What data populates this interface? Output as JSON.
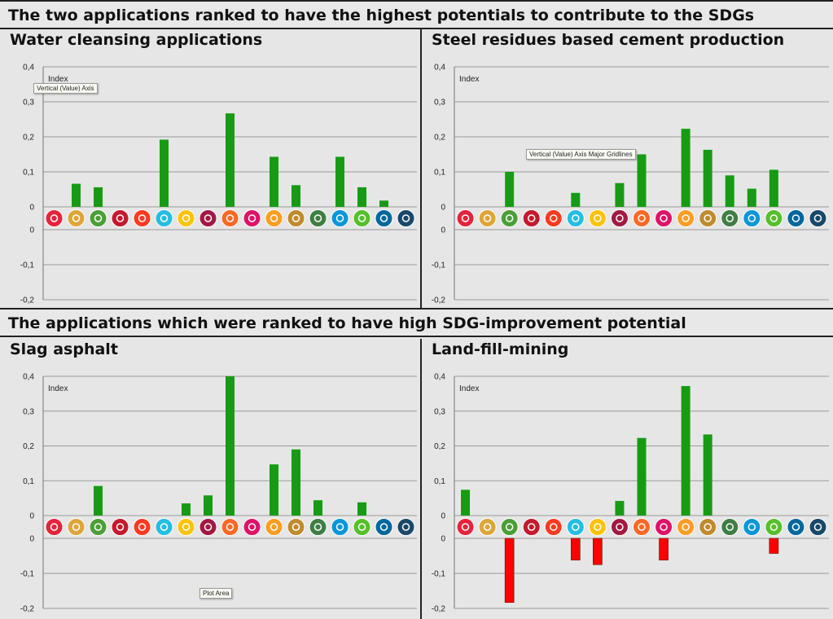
{
  "section_titles": {
    "top": "The two applications ranked to have the highest potentials to contribute to the SDGs",
    "bottom": "The applications which were ranked to have high SDG-improvement potential"
  },
  "tooltips": {
    "vertical_axis": "Vertical (Value) Axis",
    "major_gridlines": "Vertical (Value) Axis Major Gridlines",
    "plot_area": "Plot Area"
  },
  "sdg_icon_colors": [
    "#e5243b",
    "#dda63a",
    "#4c9f38",
    "#c5192d",
    "#ff3a21",
    "#26bde2",
    "#fcc30b",
    "#a21942",
    "#fd6925",
    "#dd1367",
    "#fd9d24",
    "#bf8b2e",
    "#3f7e44",
    "#0a97d9",
    "#56c02b",
    "#00689d",
    "#19486a"
  ],
  "sdg_icon_names": [
    "no-poverty-icon",
    "zero-hunger-icon",
    "good-health-icon",
    "quality-education-icon",
    "gender-equality-icon",
    "clean-water-icon",
    "clean-energy-icon",
    "decent-work-icon",
    "industry-innovation-icon",
    "reduced-inequality-icon",
    "sustainable-cities-icon",
    "responsible-consumption-icon",
    "climate-action-icon",
    "life-below-water-icon",
    "life-on-land-icon",
    "peace-justice-icon",
    "partnerships-icon"
  ],
  "chart_data": [
    {
      "type": "bar",
      "title": "Water cleansing applications",
      "ylabel": "Index",
      "ylim": [
        -0.2,
        0.4
      ],
      "yticks": [
        "0,4",
        "0,3",
        "0,2",
        "0,1",
        "0",
        "0",
        "-0,1",
        "-0,2"
      ],
      "categories": [
        "SDG1",
        "SDG2",
        "SDG3",
        "SDG4",
        "SDG5",
        "SDG6",
        "SDG7",
        "SDG8",
        "SDG9",
        "SDG10",
        "SDG11",
        "SDG12",
        "SDG13",
        "SDG14",
        "SDG15",
        "SDG16",
        "SDG17"
      ],
      "values": [
        0,
        0.066,
        0.056,
        0,
        0,
        0.192,
        0,
        0,
        0.267,
        0,
        0.143,
        0.062,
        0,
        0.143,
        0.056,
        0.018,
        0
      ],
      "positive_color": "#189b14",
      "negative_color": "#ff0000",
      "grid": true
    },
    {
      "type": "bar",
      "title": "Steel residues based cement production",
      "ylabel": "Index",
      "ylim": [
        -0.2,
        0.4
      ],
      "yticks": [
        "0,4",
        "0,3",
        "0,2",
        "0,1",
        "0",
        "0",
        "-0,1",
        "-0,2"
      ],
      "categories": [
        "SDG1",
        "SDG2",
        "SDG3",
        "SDG4",
        "SDG5",
        "SDG6",
        "SDG7",
        "SDG8",
        "SDG9",
        "SDG10",
        "SDG11",
        "SDG12",
        "SDG13",
        "SDG14",
        "SDG15",
        "SDG16",
        "SDG17"
      ],
      "values": [
        0,
        0,
        0.1,
        0,
        0,
        0.04,
        0,
        0.068,
        0.15,
        0,
        0.223,
        0.163,
        0.09,
        0.052,
        0.106,
        0,
        0
      ],
      "positive_color": "#189b14",
      "negative_color": "#ff0000",
      "grid": true
    },
    {
      "type": "bar",
      "title": "Slag asphalt",
      "ylabel": "Index",
      "ylim": [
        -0.2,
        0.4
      ],
      "yticks": [
        "0,4",
        "0,3",
        "0,2",
        "0,1",
        "0",
        "0",
        "-0,1",
        "-0,2"
      ],
      "categories": [
        "SDG1",
        "SDG2",
        "SDG3",
        "SDG4",
        "SDG5",
        "SDG6",
        "SDG7",
        "SDG8",
        "SDG9",
        "SDG10",
        "SDG11",
        "SDG12",
        "SDG13",
        "SDG14",
        "SDG15",
        "SDG16",
        "SDG17"
      ],
      "values": [
        0,
        0,
        0.085,
        0,
        0,
        0,
        0.035,
        0.058,
        0.4,
        0,
        0.147,
        0.19,
        0.044,
        0,
        0.038,
        0,
        0
      ],
      "positive_color": "#189b14",
      "negative_color": "#ff0000",
      "grid": true
    },
    {
      "type": "bar",
      "title": "Land-fill-mining",
      "ylabel": "Index",
      "ylim": [
        -0.2,
        0.4
      ],
      "yticks": [
        "0,4",
        "0,3",
        "0,2",
        "0,1",
        "0",
        "0",
        "-0,1",
        "-0,2"
      ],
      "categories": [
        "SDG1",
        "SDG2",
        "SDG3",
        "SDG4",
        "SDG5",
        "SDG6",
        "SDG7",
        "SDG8",
        "SDG9",
        "SDG10",
        "SDG11",
        "SDG12",
        "SDG13",
        "SDG14",
        "SDG15",
        "SDG16",
        "SDG17"
      ],
      "values": [
        0.074,
        0,
        -0.183,
        0,
        0,
        -0.062,
        -0.075,
        0.042,
        0.223,
        -0.062,
        0.372,
        0.233,
        0,
        0,
        -0.043,
        0,
        0
      ],
      "positive_color": "#189b14",
      "negative_color": "#ff0000",
      "grid": true
    }
  ]
}
